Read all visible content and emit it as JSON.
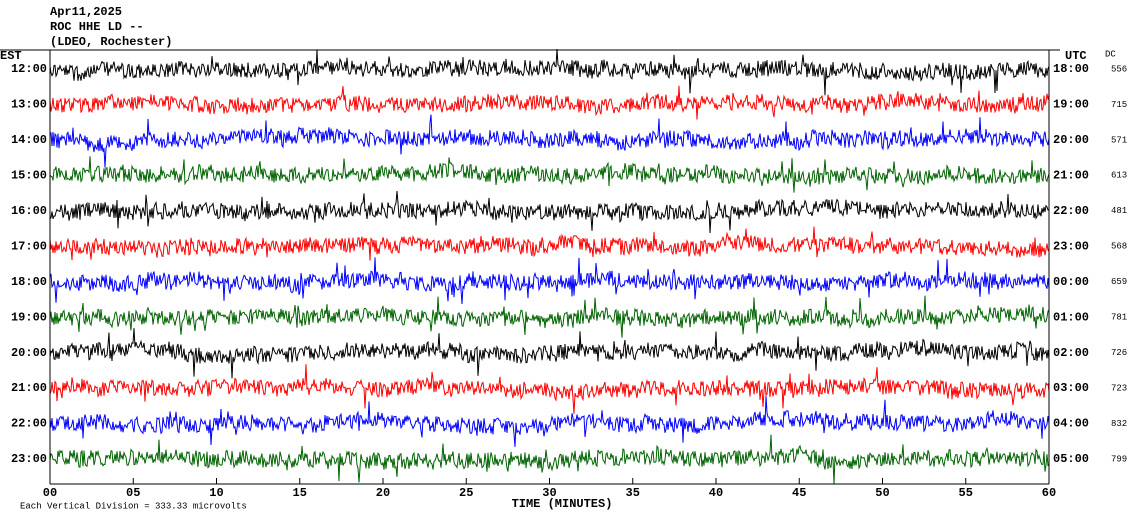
{
  "chart_data": {
    "type": "helicorder",
    "title_lines": [
      "Apr11,2025",
      "ROC HHE LD --",
      "(LDEO, Rochester)"
    ],
    "left_header": "EST",
    "right_header": "UTC",
    "dc_header": "DC",
    "xlabel": "TIME (MINUTES)",
    "footer": "Each Vertical Division =  333.33 microvolts",
    "xlim": [
      0,
      60
    ],
    "xticks": [
      {
        "value": 0,
        "label": "00"
      },
      {
        "value": 5,
        "label": "05"
      },
      10,
      15,
      20,
      25,
      30,
      35,
      40,
      45,
      50,
      55,
      60
    ],
    "rows": [
      {
        "est": "12:00",
        "utc": "18:00",
        "dc": 556,
        "color": "#000000"
      },
      {
        "est": "13:00",
        "utc": "19:00",
        "dc": 715,
        "color": "#ff0000"
      },
      {
        "est": "14:00",
        "utc": "20:00",
        "dc": 571,
        "color": "#0000ff"
      },
      {
        "est": "15:00",
        "utc": "21:00",
        "dc": 613,
        "color": "#006400"
      },
      {
        "est": "16:00",
        "utc": "22:00",
        "dc": 481,
        "color": "#000000"
      },
      {
        "est": "17:00",
        "utc": "23:00",
        "dc": 568,
        "color": "#ff0000"
      },
      {
        "est": "18:00",
        "utc": "00:00",
        "dc": 659,
        "color": "#0000ff"
      },
      {
        "est": "19:00",
        "utc": "01:00",
        "dc": 781,
        "color": "#006400"
      },
      {
        "est": "20:00",
        "utc": "02:00",
        "dc": 726,
        "color": "#000000"
      },
      {
        "est": "21:00",
        "utc": "03:00",
        "dc": 723,
        "color": "#ff0000"
      },
      {
        "est": "22:00",
        "utc": "04:00",
        "dc": 832,
        "color": "#0000ff"
      },
      {
        "est": "23:00",
        "utc": "05:00",
        "dc": 799,
        "color": "#006400"
      }
    ]
  }
}
